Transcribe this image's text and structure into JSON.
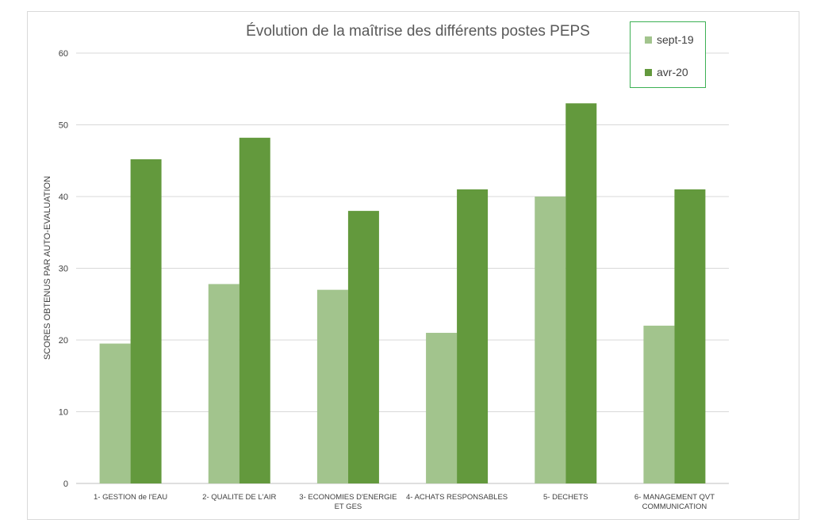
{
  "chart_data": {
    "type": "bar",
    "title": "Évolution de la maîtrise des différents postes PEPS",
    "xlabel": "",
    "ylabel": "SCORES OBTENUS PAR AUTO-EVALUATION",
    "ylim": [
      0,
      60
    ],
    "yticks": [
      0,
      10,
      20,
      30,
      40,
      50,
      60
    ],
    "grid": true,
    "legend_position": "top-right",
    "categories": [
      [
        "1- GESTION de l'EAU"
      ],
      [
        "2- QUALITE DE L'AIR"
      ],
      [
        "3- ECONOMIES D'ENERGIE",
        "ET GES"
      ],
      [
        "4- ACHATS RESPONSABLES"
      ],
      [
        "5- DECHETS"
      ],
      [
        "6- MANAGEMENT QVT",
        "COMMUNICATION"
      ]
    ],
    "series": [
      {
        "name": "sept-19",
        "color": "#a2c48d",
        "values": [
          19.5,
          27.8,
          27,
          21,
          40,
          22
        ]
      },
      {
        "name": "avr-20",
        "color": "#63993d",
        "values": [
          45.2,
          48.2,
          38,
          41,
          53,
          41
        ]
      }
    ]
  }
}
